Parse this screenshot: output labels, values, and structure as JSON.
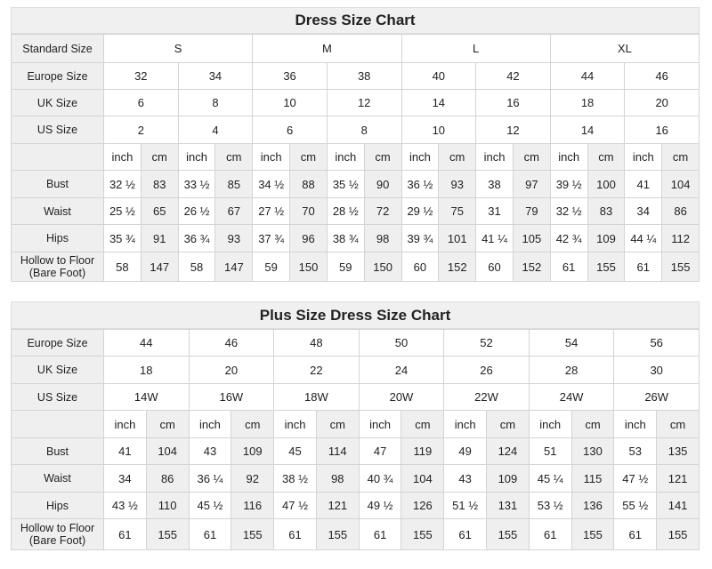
{
  "standard": {
    "title": "Dress Size Chart",
    "header_rows": [
      {
        "label": "Standard Size",
        "cells": [
          "S",
          "M",
          "L",
          "XL"
        ],
        "span": 4
      },
      {
        "label": "Europe Size",
        "cells": [
          "32",
          "34",
          "36",
          "38",
          "40",
          "42",
          "44",
          "46"
        ],
        "span": 2
      },
      {
        "label": "UK Size",
        "cells": [
          "6",
          "8",
          "10",
          "12",
          "14",
          "16",
          "18",
          "20"
        ],
        "span": 2
      },
      {
        "label": "US Size",
        "cells": [
          "2",
          "4",
          "6",
          "8",
          "10",
          "12",
          "14",
          "16"
        ],
        "span": 2
      }
    ],
    "unit_labels": [
      "inch",
      "cm"
    ],
    "measure_rows": [
      {
        "label": "Bust",
        "cells": [
          "32 ½",
          "83",
          "33 ½",
          "85",
          "34 ½",
          "88",
          "35 ½",
          "90",
          "36 ½",
          "93",
          "38",
          "97",
          "39 ½",
          "100",
          "41",
          "104"
        ]
      },
      {
        "label": "Waist",
        "cells": [
          "25 ½",
          "65",
          "26 ½",
          "67",
          "27 ½",
          "70",
          "28 ½",
          "72",
          "29 ½",
          "75",
          "31",
          "79",
          "32 ½",
          "83",
          "34",
          "86"
        ]
      },
      {
        "label": "Hips",
        "cells": [
          "35 ¾",
          "91",
          "36 ¾",
          "93",
          "37 ¾",
          "96",
          "38 ¾",
          "98",
          "39 ¾",
          "101",
          "41 ¼",
          "105",
          "42 ¾",
          "109",
          "44 ¼",
          "112"
        ]
      },
      {
        "label": "Hollow to Floor (Bare Foot)",
        "cells": [
          "58",
          "147",
          "58",
          "147",
          "59",
          "150",
          "59",
          "150",
          "60",
          "152",
          "60",
          "152",
          "61",
          "155",
          "61",
          "155"
        ]
      }
    ]
  },
  "plus": {
    "title": "Plus Size Dress Size Chart",
    "header_rows": [
      {
        "label": "Europe Size",
        "cells": [
          "44",
          "46",
          "48",
          "50",
          "52",
          "54",
          "56"
        ],
        "span": 2
      },
      {
        "label": "UK Size",
        "cells": [
          "18",
          "20",
          "22",
          "24",
          "26",
          "28",
          "30"
        ],
        "span": 2
      },
      {
        "label": "US Size",
        "cells": [
          "14W",
          "16W",
          "18W",
          "20W",
          "22W",
          "24W",
          "26W"
        ],
        "span": 2
      }
    ],
    "unit_labels": [
      "inch",
      "cm"
    ],
    "measure_rows": [
      {
        "label": "Bust",
        "cells": [
          "41",
          "104",
          "43",
          "109",
          "45",
          "114",
          "47",
          "119",
          "49",
          "124",
          "51",
          "130",
          "53",
          "135"
        ]
      },
      {
        "label": "Waist",
        "cells": [
          "34",
          "86",
          "36 ¼",
          "92",
          "38 ½",
          "98",
          "40 ¾",
          "104",
          "43",
          "109",
          "45 ¼",
          "115",
          "47 ½",
          "121"
        ]
      },
      {
        "label": "Hips",
        "cells": [
          "43 ½",
          "110",
          "45 ½",
          "116",
          "47 ½",
          "121",
          "49 ½",
          "126",
          "51 ½",
          "131",
          "53 ½",
          "136",
          "55 ½",
          "141"
        ]
      },
      {
        "label": "Hollow to Floor (Bare Foot)",
        "cells": [
          "61",
          "155",
          "61",
          "155",
          "61",
          "155",
          "61",
          "155",
          "61",
          "155",
          "61",
          "155",
          "61",
          "155"
        ]
      }
    ]
  }
}
